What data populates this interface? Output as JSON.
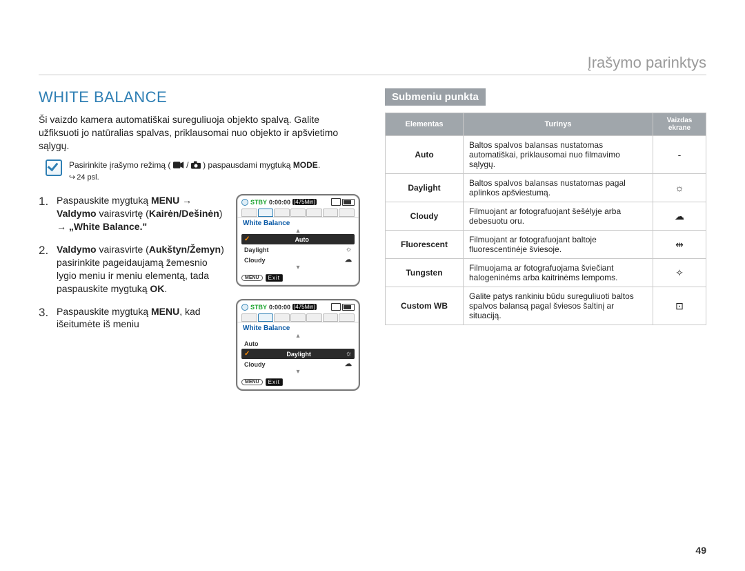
{
  "chapter": "Įrašymo parinktys",
  "section_title": "WHITE BALANCE",
  "intro": "Ši vaizdo kamera automatiškai sureguliuoja objekto spalvą. Galite užfiksuoti jo natūralias spalvas, priklausomai nuo objekto ir apšvietimo sąlygų.",
  "note": {
    "pre": "Pasirinkite įrašymo režimą (",
    "mid": " / ",
    "post": ") paspausdami mygtuką ",
    "btn": "MODE",
    "end": ".",
    "ref": "24 psl."
  },
  "steps": [
    {
      "num": "1.",
      "html": "Paspauskite mygtuką <b>MENU</b> <span class='arrow'>→</span> <b>Valdymo</b> vairasvirtę (<b>Kairėn/Dešinėn</b>) <span class='arrow'>→</span> <b>„White Balance.\"</b>"
    },
    {
      "num": "2.",
      "html": "<b>Valdymo</b> vairasvirte (<b>Aukštyn/Žemyn</b>) pasirinkite pageidaujamą žemesnio lygio meniu ir meniu elementą, tada paspauskite mygtuką <b>OK</b>."
    },
    {
      "num": "3.",
      "html": "Paspauskite mygtuką <b>MENU</b>, kad išeitumėte iš meniu"
    }
  ],
  "screen_common": {
    "stby": "STBY",
    "time": "0:00:00",
    "remain": "[475Min]",
    "menu_title": "White Balance",
    "menu_pill": "MENU",
    "exit": "Exit"
  },
  "screen1": {
    "items": [
      {
        "sel": true,
        "tick": true,
        "label": "Auto",
        "glyph": ""
      },
      {
        "sel": false,
        "label": "Daylight",
        "glyph": "☼"
      },
      {
        "sel": false,
        "label": "Cloudy",
        "glyph": "☁"
      }
    ]
  },
  "screen2": {
    "items": [
      {
        "sel": false,
        "label": "Auto",
        "glyph": ""
      },
      {
        "sel": true,
        "tick": true,
        "label": "Daylight",
        "glyph": "☼"
      },
      {
        "sel": false,
        "label": "Cloudy",
        "glyph": "☁"
      }
    ]
  },
  "submenu_title": "Submeniu punkta",
  "table": {
    "headers": [
      "Elementas",
      "Turinys",
      "Vaizdas ekrane"
    ],
    "rows": [
      {
        "el": "Auto",
        "desc": "Baltos spalvos balansas nustatomas automatiškai, priklausomai nuo filmavimo sąlygų.",
        "icon": "-"
      },
      {
        "el": "Daylight",
        "desc": "Baltos spalvos balansas nustatomas pagal aplinkos apšviestumą.",
        "icon": "☼"
      },
      {
        "el": "Cloudy",
        "desc": "Filmuojant ar fotografuojant šešėlyje arba debesuotu oru.",
        "icon": "☁"
      },
      {
        "el": "Fluorescent",
        "desc": "Filmuojant ar fotografuojant baltoje fluorescentinėje šviesoje.",
        "icon": "⇹"
      },
      {
        "el": "Tungsten",
        "desc": "Filmuojama ar fotografuojama šviečiant halogeninėms arba kaitrinėms lempoms.",
        "icon": "✧"
      },
      {
        "el": "Custom WB",
        "desc": "Galite patys rankiniu būdu sureguliuoti baltos spalvos balansą pagal šviesos šaltinį ar situaciją.",
        "icon": "⊡"
      }
    ]
  },
  "page_number": "49",
  "colors": {
    "accent": "#2f7fb4",
    "grey_header": "#a0a6ab",
    "chapter_grey": "#9a9a9a"
  }
}
